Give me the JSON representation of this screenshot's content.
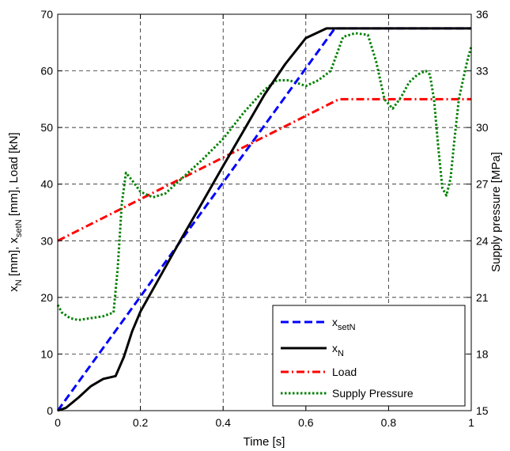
{
  "chart_data": {
    "type": "line",
    "xlabel": "Time [s]",
    "ylabel_left": {
      "main": "x",
      "sub1": "N",
      "mid": " [mm], x",
      "sub2": "setN",
      "tail": " [mm], Load [kN]"
    },
    "ylabel_right": "Supply pressure [MPa]",
    "xlim": [
      0,
      1
    ],
    "ylim_left": [
      0,
      70
    ],
    "ylim_right": [
      15,
      36
    ],
    "xticks": [
      "0",
      "0.2",
      "0.4",
      "0.6",
      "0.8",
      "1"
    ],
    "yticks_left": [
      "0",
      "10",
      "20",
      "30",
      "40",
      "50",
      "60",
      "70"
    ],
    "yticks_right": [
      "15",
      "18",
      "21",
      "24",
      "27",
      "30",
      "33",
      "36"
    ],
    "grid": true,
    "legend_position": "bottom-right",
    "series": [
      {
        "name": "x_setN",
        "label_main": "x",
        "label_sub": "setN",
        "axis": "left",
        "color": "#0000ff",
        "style": "dashed",
        "x": [
          0,
          0.67,
          1.0
        ],
        "y": [
          0,
          67.5,
          67.5
        ]
      },
      {
        "name": "x_N",
        "label_main": "x",
        "label_sub": "N",
        "axis": "left",
        "color": "#000000",
        "style": "solid",
        "x": [
          0,
          0.02,
          0.05,
          0.08,
          0.11,
          0.14,
          0.16,
          0.18,
          0.2,
          0.25,
          0.3,
          0.35,
          0.4,
          0.45,
          0.5,
          0.55,
          0.6,
          0.65,
          0.7,
          0.75,
          1.0
        ],
        "y": [
          0,
          0.5,
          2.3,
          4.3,
          5.6,
          6.1,
          9.5,
          14.0,
          17.5,
          24.0,
          30.5,
          36.8,
          43.2,
          49.5,
          55.8,
          61.2,
          65.8,
          67.5,
          67.5,
          67.5,
          67.5
        ]
      },
      {
        "name": "Load",
        "label_main": "Load",
        "label_sub": "",
        "axis": "left",
        "color": "#ff0000",
        "style": "dashdot",
        "x": [
          0,
          0.68,
          1.0
        ],
        "y": [
          30,
          55,
          55
        ]
      },
      {
        "name": "Supply Pressure",
        "label_main": "Supply Pressure",
        "label_sub": "",
        "axis": "right",
        "color": "#008000",
        "style": "dotted",
        "x": [
          0,
          0.01,
          0.03,
          0.05,
          0.08,
          0.11,
          0.135,
          0.145,
          0.155,
          0.165,
          0.18,
          0.2,
          0.23,
          0.26,
          0.3,
          0.35,
          0.4,
          0.45,
          0.5,
          0.53,
          0.56,
          0.6,
          0.63,
          0.66,
          0.69,
          0.72,
          0.75,
          0.77,
          0.79,
          0.81,
          0.83,
          0.85,
          0.87,
          0.89,
          0.9,
          0.91,
          0.92,
          0.93,
          0.94,
          0.95,
          0.96,
          0.97,
          0.98,
          0.99,
          1.0
        ],
        "y": [
          20.6,
          20.2,
          19.9,
          19.8,
          19.9,
          20.0,
          20.2,
          22.5,
          26.0,
          27.6,
          27.2,
          26.6,
          26.3,
          26.5,
          27.3,
          28.3,
          29.4,
          30.8,
          32.0,
          32.5,
          32.5,
          32.2,
          32.5,
          33.0,
          34.8,
          35.0,
          34.9,
          33.5,
          31.5,
          31.0,
          31.6,
          32.4,
          32.8,
          33.0,
          32.8,
          31.5,
          29.0,
          26.8,
          26.4,
          27.3,
          29.5,
          31.5,
          32.5,
          33.5,
          34.3
        ]
      }
    ]
  }
}
